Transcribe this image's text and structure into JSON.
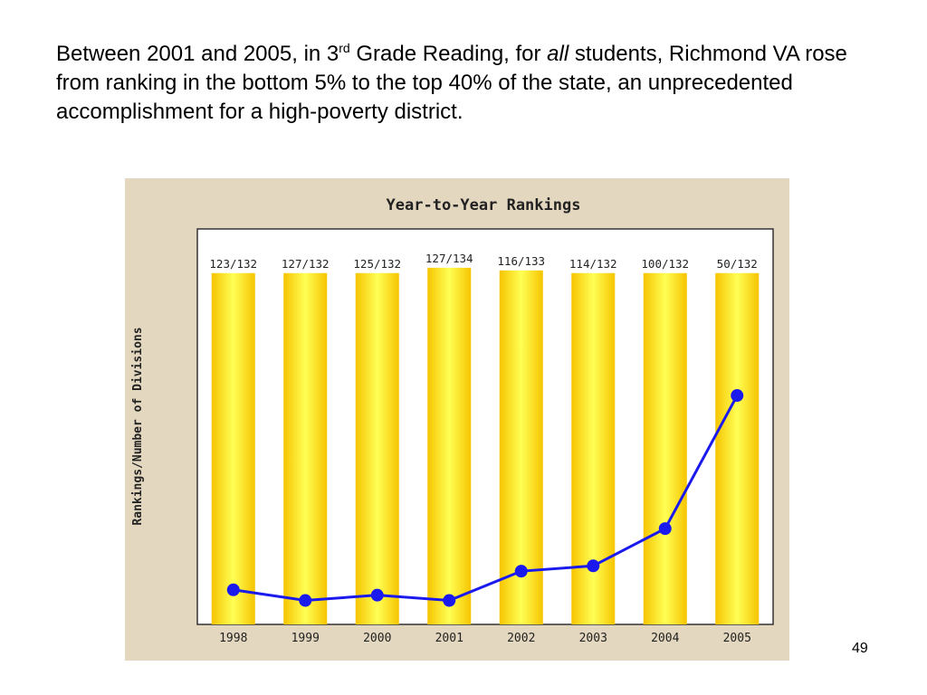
{
  "slide": {
    "text_part1": "Between 2001 and 2005, in 3",
    "text_sup": "rd",
    "text_part2": " Grade Reading, for ",
    "text_em": "all",
    "text_part3": " students, Richmond VA rose from ranking in the bottom 5% to the top 40% of the state, an unprecedented accomplishment for a high-poverty district.",
    "page_number": "49"
  },
  "chart_data": {
    "type": "bar",
    "title": "Year-to-Year Rankings",
    "ylabel": "Rankings/Number of Divisions",
    "xlabel": "",
    "categories": [
      "1998",
      "1999",
      "2000",
      "2001",
      "2002",
      "2003",
      "2004",
      "2005"
    ],
    "bar_labels": [
      "123/132",
      "127/132",
      "125/132",
      "127/134",
      "116/133",
      "114/132",
      "100/132",
      "50/132"
    ],
    "series": [
      {
        "values": [
          132,
          132,
          132,
          134,
          133,
          132,
          132,
          132
        ]
      },
      {
        "type": "line",
        "values": [
          123,
          127,
          125,
          127,
          116,
          114,
          100,
          50
        ]
      }
    ],
    "ylim": [
      0,
      136
    ],
    "y_inverted": true,
    "grid": false,
    "colors": {
      "panel_bg": "#e3d7bf",
      "plot_bg": "#ffffff",
      "bar_edge": "#f6c400",
      "bar_center": "#ffff55",
      "line": "#1a1aee",
      "axis": "#333333",
      "text": "#222222"
    }
  }
}
